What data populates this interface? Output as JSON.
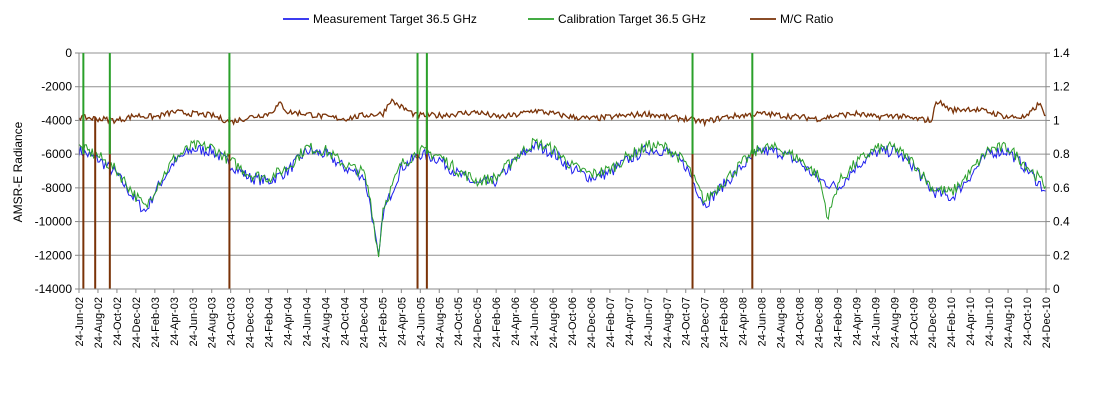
{
  "chart_data": {
    "type": "line",
    "legend_position": "top-center",
    "grid": "horizontal",
    "ylabel": "AMSR-E Radiance",
    "y2label": "",
    "ylim": [
      -14000,
      0
    ],
    "y2lim": [
      0,
      1.4
    ],
    "yticks": [
      0,
      -2000,
      -4000,
      -6000,
      -8000,
      -10000,
      -12000,
      -14000
    ],
    "y2ticks": [
      1.4,
      1.2,
      1,
      0.8,
      0.6,
      0.4,
      0.2,
      0
    ],
    "ytick_labels": [
      "0",
      "-2000",
      "-4000",
      "-6000",
      "-8000",
      "-10000",
      "-12000",
      "-14000"
    ],
    "y2tick_labels": [
      "1.4",
      "1.2",
      "1",
      "0.8",
      "0.6",
      "0.4",
      "0.2",
      "0"
    ],
    "x_start": "2002-06-24",
    "x_end": "2010-12-24",
    "x_tick_labels": [
      "24-Jun-02",
      "24-Aug-02",
      "24-Oct-02",
      "24-Dec-02",
      "24-Feb-03",
      "24-Apr-03",
      "24-Jun-03",
      "24-Aug-03",
      "24-Oct-03",
      "24-Dec-03",
      "24-Feb-04",
      "24-Apr-04",
      "24-Jun-04",
      "24-Aug-04",
      "24-Oct-04",
      "24-Dec-04",
      "24-Feb-05",
      "24-Apr-05",
      "24-Jun-05",
      "24-Aug-05",
      "24-Oct-05",
      "24-Dec-05",
      "24-Feb-06",
      "24-Apr-06",
      "24-Jun-06",
      "24-Aug-06",
      "24-Oct-06",
      "24-Dec-06",
      "24-Feb-07",
      "24-Apr-07",
      "24-Jun-07",
      "24-Aug-07",
      "24-Oct-07",
      "24-Dec-07",
      "24-Feb-08",
      "24-Apr-08",
      "24-Jun-08",
      "24-Aug-08",
      "24-Oct-08",
      "24-Dec-08",
      "24-Feb-09",
      "24-Apr-09",
      "24-Jun-09",
      "24-Aug-09",
      "24-Oct-09",
      "24-Dec-09",
      "24-Feb-10",
      "24-Apr-10",
      "24-Jun-10",
      "24-Aug-10",
      "24-Oct-10",
      "24-Dec-10"
    ],
    "series": [
      {
        "name": "Measurement Target 36.5 GHz",
        "axis": "left",
        "color": "#2020ee",
        "x": [
          "2002-06-24",
          "2002-08-24",
          "2002-10-24",
          "2002-12-24",
          "2003-01-24",
          "2003-02-24",
          "2003-04-24",
          "2003-06-24",
          "2003-08-24",
          "2003-10-24",
          "2003-12-24",
          "2004-02-24",
          "2004-04-24",
          "2004-06-24",
          "2004-08-24",
          "2004-10-24",
          "2004-12-24",
          "2005-01-15",
          "2005-02-10",
          "2005-02-24",
          "2005-04-24",
          "2005-06-24",
          "2005-08-24",
          "2005-10-24",
          "2005-12-24",
          "2006-02-24",
          "2006-04-24",
          "2006-06-24",
          "2006-08-24",
          "2006-10-24",
          "2006-12-24",
          "2007-02-24",
          "2007-04-24",
          "2007-06-24",
          "2007-08-24",
          "2007-10-24",
          "2007-12-24",
          "2008-02-24",
          "2008-04-24",
          "2008-06-24",
          "2008-08-24",
          "2008-10-24",
          "2008-12-24",
          "2009-02-24",
          "2009-04-24",
          "2009-06-24",
          "2009-08-24",
          "2009-10-24",
          "2009-12-24",
          "2010-02-24",
          "2010-04-24",
          "2010-06-24",
          "2010-08-24",
          "2010-10-24",
          "2010-12-24"
        ],
        "values": [
          -5800,
          -6300,
          -7200,
          -8800,
          -9400,
          -8200,
          -6500,
          -5700,
          -5800,
          -6600,
          -7400,
          -7600,
          -7000,
          -5800,
          -6000,
          -6800,
          -7300,
          -9000,
          -12300,
          -9500,
          -6800,
          -6000,
          -6300,
          -7200,
          -7800,
          -7600,
          -6400,
          -5500,
          -5900,
          -6900,
          -7400,
          -7100,
          -6300,
          -5700,
          -5800,
          -6700,
          -9000,
          -7800,
          -6700,
          -5800,
          -5900,
          -6500,
          -7500,
          -8000,
          -6700,
          -5900,
          -5800,
          -6700,
          -8200,
          -8600,
          -7300,
          -5900,
          -5800,
          -6900,
          -8200
        ]
      },
      {
        "name": "Calibration Target 36.5 GHz",
        "axis": "left",
        "color": "#2aa02a",
        "x": [
          "2002-06-24",
          "2002-08-24",
          "2002-10-24",
          "2002-12-24",
          "2003-01-24",
          "2003-02-24",
          "2003-04-24",
          "2003-06-24",
          "2003-08-24",
          "2003-10-24",
          "2003-12-24",
          "2004-02-24",
          "2004-04-24",
          "2004-06-24",
          "2004-08-24",
          "2004-10-24",
          "2004-12-24",
          "2005-01-15",
          "2005-02-10",
          "2005-02-24",
          "2005-04-24",
          "2005-06-24",
          "2005-08-24",
          "2005-10-24",
          "2005-12-24",
          "2006-02-24",
          "2006-04-24",
          "2006-06-24",
          "2006-08-24",
          "2006-10-24",
          "2006-12-24",
          "2007-02-24",
          "2007-04-24",
          "2007-06-24",
          "2007-08-24",
          "2007-10-24",
          "2007-12-24",
          "2008-02-24",
          "2008-04-24",
          "2008-06-24",
          "2008-08-24",
          "2008-10-24",
          "2008-12-24",
          "2009-01-24",
          "2009-02-24",
          "2009-04-24",
          "2009-06-24",
          "2009-08-24",
          "2009-10-24",
          "2009-12-24",
          "2010-02-24",
          "2010-04-24",
          "2010-06-24",
          "2010-08-24",
          "2010-10-24",
          "2010-12-24"
        ],
        "values": [
          -5600,
          -6100,
          -7000,
          -8500,
          -9200,
          -8000,
          -6300,
          -5500,
          -5600,
          -6400,
          -7200,
          -7400,
          -6800,
          -5600,
          -5800,
          -6600,
          -7100,
          -8700,
          -12100,
          -9200,
          -6600,
          -5800,
          -6100,
          -7000,
          -7600,
          -7400,
          -6200,
          -5300,
          -5700,
          -6700,
          -7200,
          -6900,
          -6100,
          -5500,
          -5600,
          -6500,
          -8800,
          -7600,
          -6500,
          -5600,
          -5700,
          -6300,
          -7300,
          -9800,
          -7700,
          -6500,
          -5700,
          -5600,
          -6500,
          -8000,
          -8300,
          -7100,
          -5700,
          -5600,
          -6700,
          -7900
        ]
      },
      {
        "name": "M/C Ratio",
        "axis": "right",
        "color": "#7a3308",
        "x": [
          "2002-06-24",
          "2002-08-24",
          "2002-10-24",
          "2002-12-24",
          "2003-02-24",
          "2003-04-24",
          "2003-06-24",
          "2003-08-24",
          "2003-10-24",
          "2003-12-24",
          "2004-02-24",
          "2004-04-01",
          "2004-04-24",
          "2004-06-24",
          "2004-08-24",
          "2004-10-24",
          "2004-12-24",
          "2005-02-24",
          "2005-03-20",
          "2005-04-24",
          "2005-06-10",
          "2005-08-24",
          "2005-10-24",
          "2005-12-24",
          "2006-02-24",
          "2006-04-24",
          "2006-06-24",
          "2006-08-24",
          "2006-10-24",
          "2006-12-24",
          "2007-02-24",
          "2007-04-24",
          "2007-06-24",
          "2007-08-24",
          "2007-10-24",
          "2007-12-24",
          "2008-02-24",
          "2008-04-24",
          "2008-06-24",
          "2008-08-24",
          "2008-10-24",
          "2008-12-24",
          "2009-02-24",
          "2009-04-24",
          "2009-06-24",
          "2009-08-24",
          "2009-10-24",
          "2009-12-24",
          "2010-01-05",
          "2010-02-24",
          "2010-04-24",
          "2010-06-24",
          "2010-08-24",
          "2010-10-24",
          "2010-12-01",
          "2010-12-24"
        ],
        "values": [
          1.02,
          1.01,
          1.0,
          1.03,
          1.02,
          1.05,
          1.04,
          1.03,
          0.99,
          1.02,
          1.04,
          1.1,
          1.05,
          1.04,
          1.02,
          1.01,
          1.03,
          1.04,
          1.12,
          1.08,
          1.03,
          1.03,
          1.04,
          1.05,
          1.02,
          1.03,
          1.06,
          1.04,
          1.02,
          1.01,
          1.02,
          1.03,
          1.04,
          1.02,
          1.01,
          0.99,
          1.02,
          1.03,
          1.04,
          1.03,
          1.02,
          1.01,
          1.03,
          1.04,
          1.02,
          1.03,
          1.01,
          1.0,
          1.12,
          1.06,
          1.07,
          1.05,
          1.02,
          1.02,
          1.1,
          1.03
        ]
      }
    ],
    "spikes": [
      {
        "x": "2002-07-08",
        "series": "M/C Ratio",
        "direction": "down"
      },
      {
        "x": "2002-08-15",
        "series": "M/C Ratio",
        "direction": "down"
      },
      {
        "x": "2002-10-01",
        "series": "M/C Ratio",
        "direction": "down"
      },
      {
        "x": "2003-10-20",
        "series": "M/C Ratio",
        "direction": "down"
      },
      {
        "x": "2005-06-15",
        "series": "M/C Ratio",
        "direction": "down"
      },
      {
        "x": "2005-07-15",
        "series": "M/C Ratio",
        "direction": "down"
      },
      {
        "x": "2007-11-15",
        "series": "M/C Ratio",
        "direction": "down"
      },
      {
        "x": "2008-05-25",
        "series": "M/C Ratio",
        "direction": "down"
      },
      {
        "x": "2002-07-08",
        "series": "Calibration Target 36.5 GHz",
        "direction": "up"
      },
      {
        "x": "2002-10-01",
        "series": "Calibration Target 36.5 GHz",
        "direction": "up"
      },
      {
        "x": "2003-10-20",
        "series": "Calibration Target 36.5 GHz",
        "direction": "up"
      },
      {
        "x": "2005-06-15",
        "series": "Calibration Target 36.5 GHz",
        "direction": "up"
      },
      {
        "x": "2005-07-15",
        "series": "Calibration Target 36.5 GHz",
        "direction": "up"
      },
      {
        "x": "2007-11-15",
        "series": "Calibration Target 36.5 GHz",
        "direction": "up"
      },
      {
        "x": "2008-05-25",
        "series": "Calibration Target 36.5 GHz",
        "direction": "up"
      }
    ]
  }
}
